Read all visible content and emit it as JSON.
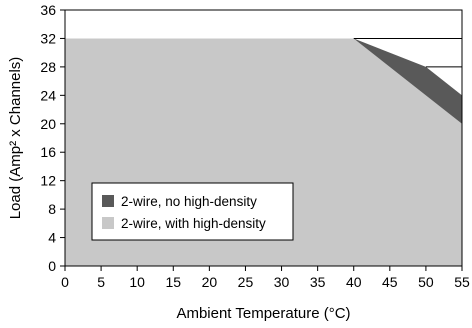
{
  "chart_data": {
    "type": "area",
    "title": "",
    "xlabel": "Ambient Temperature (°C)",
    "ylabel": "Load (Amp² x Channels)",
    "xlim": [
      0,
      55
    ],
    "ylim": [
      0,
      36
    ],
    "xticks": [
      0,
      5,
      10,
      15,
      20,
      25,
      30,
      35,
      40,
      45,
      50,
      55
    ],
    "yticks": [
      0,
      4,
      8,
      12,
      16,
      20,
      24,
      28,
      32,
      36
    ],
    "grid": false,
    "series": [
      {
        "name": "2-wire, no high-density",
        "color": "#595959",
        "x": [
          0,
          40,
          50,
          55
        ],
        "y": [
          32,
          32,
          28,
          24
        ]
      },
      {
        "name": "2-wire, with high-density",
        "color": "#c8c8c8",
        "x": [
          0,
          40,
          55
        ],
        "y": [
          32,
          32,
          20
        ]
      }
    ],
    "reference_lines": [
      {
        "y": 32,
        "x_range": [
          40,
          55
        ]
      },
      {
        "y": 28,
        "x_range": [
          50,
          55
        ]
      }
    ],
    "legend": {
      "position": "bottom-left",
      "entries": [
        "2-wire, no high-density",
        "2-wire, with high-density"
      ]
    }
  }
}
